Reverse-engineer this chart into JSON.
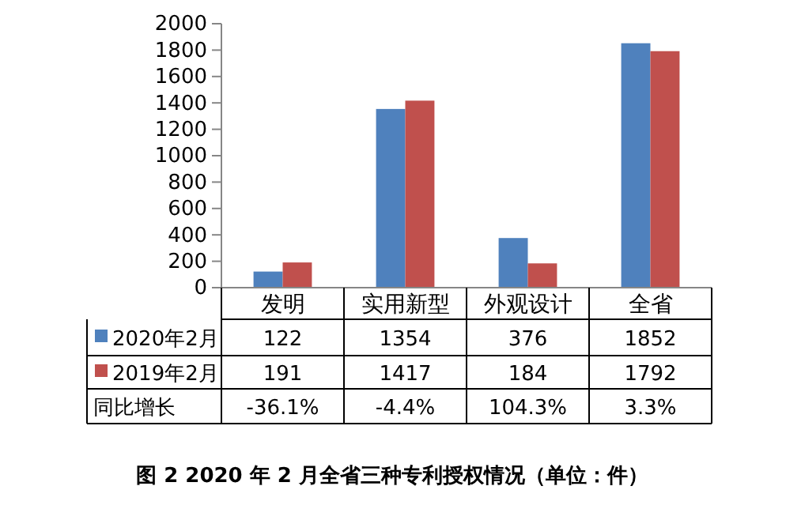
{
  "chart_data": {
    "type": "bar",
    "title": "图 2 2020 年 2 月全省三种专利授权情况（单位：件）",
    "categories": [
      "发明",
      "实用新型",
      "外观设计",
      "全省"
    ],
    "series": [
      {
        "name": "2020年2月",
        "color": "#4f81bd",
        "values": [
          122,
          1354,
          376,
          1852
        ]
      },
      {
        "name": "2019年2月",
        "color": "#c0504d",
        "values": [
          191,
          1417,
          184,
          1792
        ]
      }
    ],
    "ylim": [
      0,
      2000
    ],
    "yticks": [
      0,
      200,
      400,
      600,
      800,
      1000,
      1200,
      1400,
      1600,
      1800,
      2000
    ],
    "grid": false,
    "legend": "bottom",
    "data_labels": true,
    "annotations": [
      "同比增长",
      "-36.1%",
      "-4.4%",
      "104.3%",
      "3.3%"
    ]
  }
}
